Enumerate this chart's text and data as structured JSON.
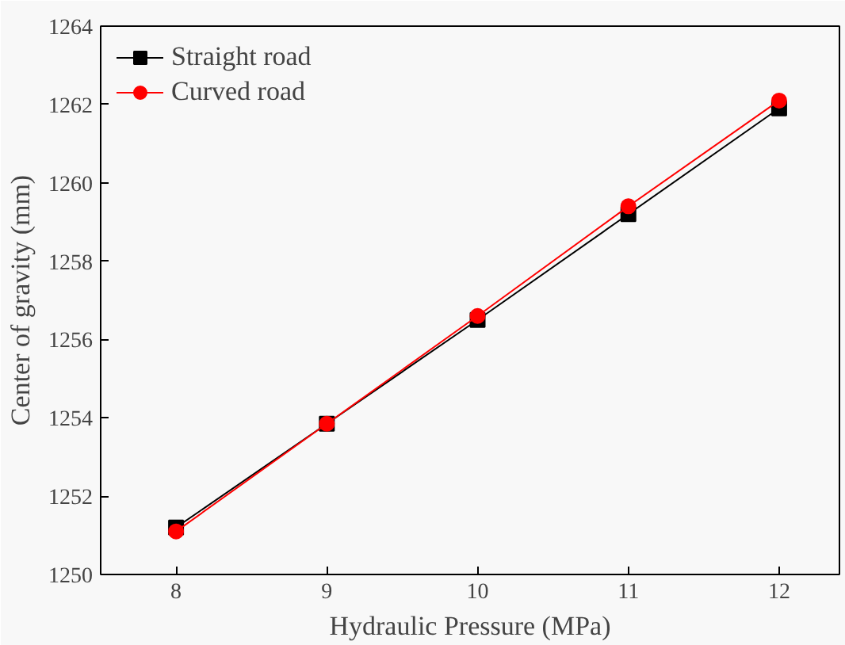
{
  "chart_data": {
    "type": "line",
    "xlabel": "Hydraulic Pressure (MPa)",
    "ylabel": "Center of gravity (mm)",
    "x": [
      8,
      9,
      10,
      11,
      12
    ],
    "series": [
      {
        "name": "Straight road",
        "color": "#000000",
        "marker": "square",
        "values": [
          1251.2,
          1253.85,
          1256.5,
          1259.2,
          1261.9
        ]
      },
      {
        "name": "Curved road",
        "color": "#ff0000",
        "marker": "circle",
        "values": [
          1251.1,
          1253.85,
          1256.6,
          1259.4,
          1262.1
        ]
      }
    ],
    "xlim": [
      7.5,
      12.4
    ],
    "xticks": [
      8,
      9,
      10,
      11,
      12
    ],
    "ylim": [
      1250,
      1264
    ],
    "yticks": [
      1250,
      1252,
      1254,
      1256,
      1258,
      1260,
      1262,
      1264
    ],
    "grid": false,
    "legend": "top left"
  }
}
